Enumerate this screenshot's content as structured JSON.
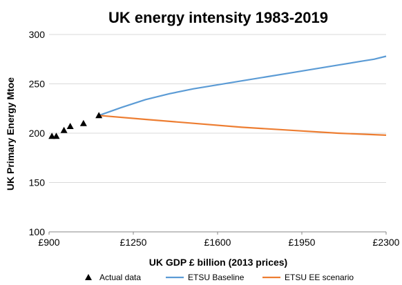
{
  "chart_data": {
    "type": "scatter",
    "title": "UK energy intensity 1983-2019",
    "xlabel": "UK GDP £ billion (2013 prices)",
    "ylabel": "UK Primary Energy Mtoe",
    "xlim": [
      900,
      2300
    ],
    "ylim": [
      100,
      300
    ],
    "x_ticks": [
      900,
      1250,
      1600,
      1950,
      2300
    ],
    "x_tick_labels": [
      "£900",
      "£1250",
      "£1600",
      "£1950",
      "£2300"
    ],
    "y_ticks": [
      100,
      150,
      200,
      250,
      300
    ],
    "y_tick_labels": [
      "100",
      "150",
      "200",
      "250",
      "300"
    ],
    "grid": "horizontal",
    "legend_position": "bottom",
    "series": [
      {
        "name": "Actual data",
        "kind": "marker",
        "marker": "triangle",
        "color": "#000000",
        "points": [
          [
            912,
            197
          ],
          [
            930,
            197
          ],
          [
            962,
            203
          ],
          [
            988,
            207
          ],
          [
            1043,
            210
          ],
          [
            1107,
            218
          ]
        ]
      },
      {
        "name": "ETSU Baseline",
        "kind": "line",
        "color": "#5b9bd5",
        "points": [
          [
            1107,
            218
          ],
          [
            1200,
            226
          ],
          [
            1300,
            234
          ],
          [
            1400,
            240
          ],
          [
            1500,
            245
          ],
          [
            1600,
            249
          ],
          [
            1700,
            253
          ],
          [
            1800,
            257
          ],
          [
            1900,
            261
          ],
          [
            2000,
            265
          ],
          [
            2100,
            269
          ],
          [
            2200,
            273
          ],
          [
            2250,
            275
          ],
          [
            2300,
            278
          ]
        ]
      },
      {
        "name": "ETSU EE scenario",
        "kind": "line",
        "color": "#ed7d31",
        "points": [
          [
            1107,
            218
          ],
          [
            1300,
            214
          ],
          [
            1500,
            210
          ],
          [
            1700,
            206
          ],
          [
            1900,
            203
          ],
          [
            2100,
            200
          ],
          [
            2300,
            198
          ]
        ]
      }
    ]
  }
}
